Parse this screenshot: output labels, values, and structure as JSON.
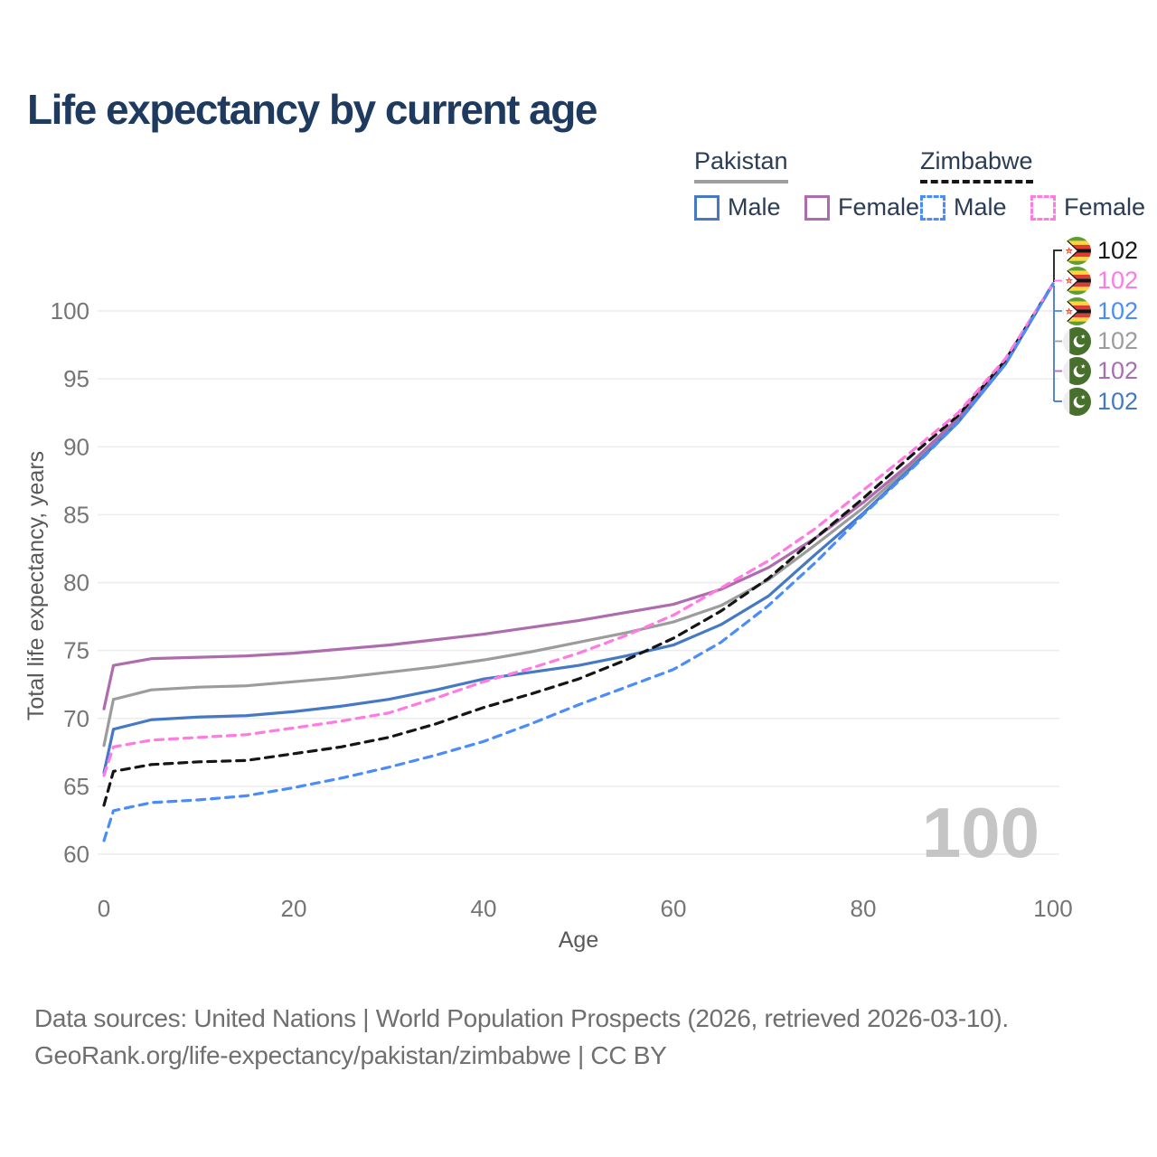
{
  "title": "Life expectancy by current age",
  "legend": {
    "countries": [
      {
        "name": "Pakistan",
        "underline_style": "solid",
        "underline_color": "#9e9e9e",
        "items": [
          {
            "label": "Male",
            "style": "solid",
            "color": "#4579c4"
          },
          {
            "label": "Female",
            "style": "solid",
            "color": "#ae6cae"
          }
        ]
      },
      {
        "name": "Zimbabwe",
        "underline_style": "dashed",
        "underline_color": "#151515",
        "items": [
          {
            "label": "Male",
            "style": "dashed",
            "color": "#4a8cfa"
          },
          {
            "label": "Female",
            "style": "dashed",
            "color": "#ff7ae1"
          }
        ]
      }
    ]
  },
  "watermark": "100",
  "footer": {
    "line1": "Data sources: United Nations | World Population Prospects (2026, retrieved 2026-03-10).",
    "line2": "GeoRank.org/life-expectancy/pakistan/zimbabwe | CC BY"
  },
  "chart_data": {
    "type": "line",
    "title": "Life expectancy by current age",
    "xlabel": "Age",
    "ylabel": "Total life expectancy, years",
    "xlim": [
      0,
      100
    ],
    "ylim": [
      60,
      102
    ],
    "x_ticks": [
      0,
      20,
      40,
      60,
      80,
      100
    ],
    "y_ticks": [
      60,
      65,
      70,
      75,
      80,
      85,
      90,
      95,
      100
    ],
    "grid": "horizontal-only",
    "legend_position": "top-right",
    "x": [
      0,
      1,
      5,
      10,
      15,
      20,
      25,
      30,
      35,
      40,
      45,
      50,
      55,
      60,
      65,
      70,
      75,
      80,
      85,
      90,
      95,
      100
    ],
    "series": [
      {
        "id": "pakistan-both",
        "name": "Pakistan Both sexes",
        "country": "Pakistan",
        "sex": "both",
        "color": "#9c9c9c",
        "dash": false,
        "values": [
          68.0,
          71.4,
          72.1,
          72.3,
          72.4,
          72.7,
          73.0,
          73.4,
          73.8,
          74.3,
          74.9,
          75.6,
          76.3,
          77.1,
          78.3,
          80.2,
          82.8,
          85.5,
          88.6,
          92.0,
          96.2,
          102
        ]
      },
      {
        "id": "pakistan-female",
        "name": "Pakistan Female",
        "country": "Pakistan",
        "sex": "female",
        "color": "#ae6cae",
        "dash": false,
        "values": [
          70.7,
          73.9,
          74.4,
          74.5,
          74.6,
          74.8,
          75.1,
          75.4,
          75.8,
          76.2,
          76.7,
          77.2,
          77.8,
          78.4,
          79.5,
          81.1,
          83.3,
          85.9,
          88.8,
          92.1,
          96.3,
          102
        ]
      },
      {
        "id": "pakistan-male",
        "name": "Pakistan Male",
        "country": "Pakistan",
        "sex": "male",
        "color": "#4579c4",
        "dash": false,
        "values": [
          66.0,
          69.2,
          69.9,
          70.1,
          70.2,
          70.5,
          70.9,
          71.4,
          72.1,
          72.9,
          73.4,
          73.9,
          74.6,
          75.4,
          76.9,
          79.0,
          82.1,
          85.1,
          88.4,
          91.8,
          96.1,
          102
        ]
      },
      {
        "id": "zimbabwe-both",
        "name": "Zimbabwe Both sexes",
        "country": "Zimbabwe",
        "sex": "both",
        "color": "#151515",
        "dash": true,
        "values": [
          63.6,
          66.1,
          66.6,
          66.8,
          66.9,
          67.4,
          67.9,
          68.6,
          69.6,
          70.8,
          71.8,
          72.9,
          74.3,
          75.9,
          77.9,
          80.3,
          83.3,
          86.2,
          89.3,
          92.3,
          96.4,
          102
        ]
      },
      {
        "id": "zimbabwe-female",
        "name": "Zimbabwe Female",
        "country": "Zimbabwe",
        "sex": "female",
        "color": "#ff7ae1",
        "dash": true,
        "values": [
          65.8,
          67.9,
          68.4,
          68.6,
          68.8,
          69.3,
          69.8,
          70.4,
          71.5,
          72.7,
          73.7,
          74.8,
          76.1,
          77.6,
          79.6,
          81.6,
          84.0,
          86.8,
          89.6,
          92.5,
          96.5,
          102
        ]
      },
      {
        "id": "zimbabwe-male",
        "name": "Zimbabwe Male",
        "country": "Zimbabwe",
        "sex": "male",
        "color": "#4a8cfa",
        "dash": true,
        "values": [
          61.0,
          63.2,
          63.8,
          64.0,
          64.3,
          64.9,
          65.6,
          66.4,
          67.3,
          68.3,
          69.6,
          71.0,
          72.3,
          73.6,
          75.6,
          78.3,
          81.5,
          85.0,
          88.3,
          91.8,
          96.1,
          102
        ]
      }
    ],
    "end_labels": [
      {
        "flag": "zimbabwe",
        "series": "zimbabwe-both",
        "value": "102",
        "color": "#1a1a1a"
      },
      {
        "flag": "zimbabwe",
        "series": "zimbabwe-female",
        "value": "102",
        "color": "#ff7ae1"
      },
      {
        "flag": "zimbabwe",
        "series": "zimbabwe-male",
        "value": "102",
        "color": "#4a8cfa"
      },
      {
        "flag": "pakistan",
        "series": "pakistan-both",
        "value": "102",
        "color": "#9c9c9c"
      },
      {
        "flag": "pakistan",
        "series": "pakistan-female",
        "value": "102",
        "color": "#a76fb0"
      },
      {
        "flag": "pakistan",
        "series": "pakistan-male",
        "value": "102",
        "color": "#4579c4"
      }
    ]
  }
}
